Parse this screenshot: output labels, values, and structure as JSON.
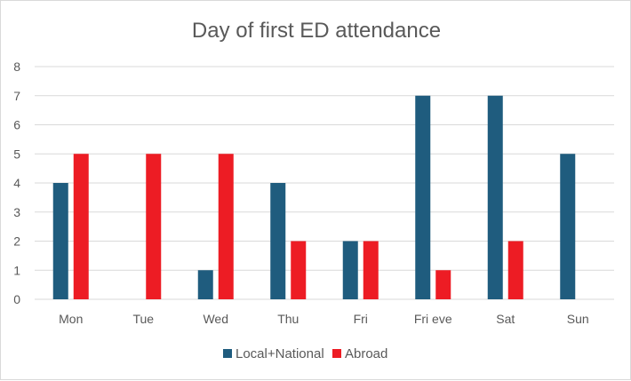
{
  "chart_data": {
    "type": "bar",
    "title": "Day of first ED attendance",
    "xlabel": "",
    "ylabel": "",
    "categories": [
      "Mon",
      "Tue",
      "Wed",
      "Thu",
      "Fri",
      "Fri eve",
      "Sat",
      "Sun"
    ],
    "series": [
      {
        "name": "Local+National",
        "color": "#1f5c7e",
        "values": [
          4,
          0,
          1,
          4,
          2,
          7,
          7,
          5
        ]
      },
      {
        "name": "Abroad",
        "color": "#ed1c24",
        "values": [
          5,
          5,
          5,
          2,
          2,
          1,
          2,
          0
        ]
      }
    ],
    "ylim": [
      0,
      8
    ],
    "yticks": [
      0,
      1,
      2,
      3,
      4,
      5,
      6,
      7,
      8
    ],
    "grid": true,
    "legend_position": "bottom"
  }
}
